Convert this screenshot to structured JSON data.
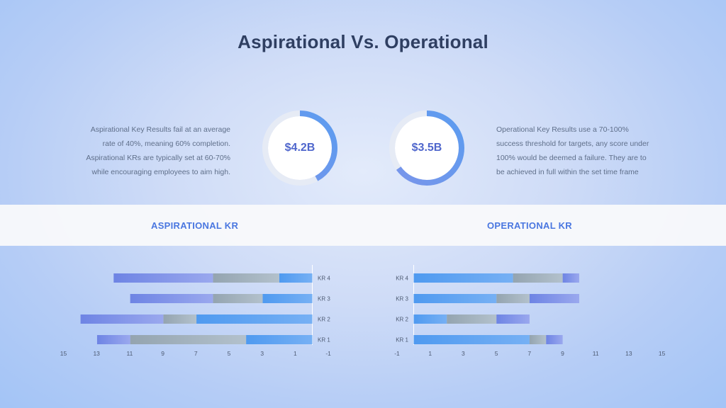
{
  "title": "Aspirational Vs. Operational",
  "aspirational": {
    "label": "ASPIRATIONAL KR",
    "description_lines": [
      "Aspirational Key Results fail at an average",
      "rate of 40%, meaning 60% completion.",
      "Aspirational KRs are typically set at 60-70%",
      "while encouraging employees to aim high."
    ],
    "donut_value": "$4.2B",
    "donut_fraction": 0.42
  },
  "operational": {
    "label": "OPERATIONAL KR",
    "description_lines": [
      "Operational Key Results use a 70-100%",
      "success threshold for targets, any score under",
      "100% would be deemed a failure. They are to",
      "be achieved in full within the set time frame"
    ],
    "donut_value": "$3.5B",
    "donut_fraction": 0.65
  },
  "colors": {
    "blue": "#5b9cf0",
    "gray": "#9aa9b5",
    "purple": "#7b8ee8"
  },
  "chart_data": [
    {
      "type": "bar",
      "orientation": "horizontal-stacked",
      "direction": "reversed",
      "categories": [
        "KR 1",
        "KR 2",
        "KR 3",
        "KR 4"
      ],
      "xlim": [
        -1,
        15
      ],
      "xticks": [
        "15",
        "13",
        "11",
        "9",
        "7",
        "5",
        "3",
        "1",
        "-1"
      ],
      "series": [
        {
          "values": [
            4,
            7,
            3,
            2
          ]
        },
        {
          "values": [
            7,
            2,
            3,
            4
          ]
        },
        {
          "values": [
            2,
            5,
            5,
            6
          ]
        }
      ]
    },
    {
      "type": "bar",
      "orientation": "horizontal-stacked",
      "direction": "normal",
      "categories": [
        "KR 1",
        "KR 2",
        "KR 3",
        "KR 4"
      ],
      "xlim": [
        -1,
        15
      ],
      "xticks": [
        "-1",
        "1",
        "3",
        "5",
        "7",
        "9",
        "11",
        "13",
        "15"
      ],
      "series": [
        {
          "values": [
            7,
            2,
            5,
            6
          ]
        },
        {
          "values": [
            1,
            3,
            2,
            3
          ]
        },
        {
          "values": [
            1,
            2,
            3,
            1
          ]
        }
      ]
    }
  ]
}
